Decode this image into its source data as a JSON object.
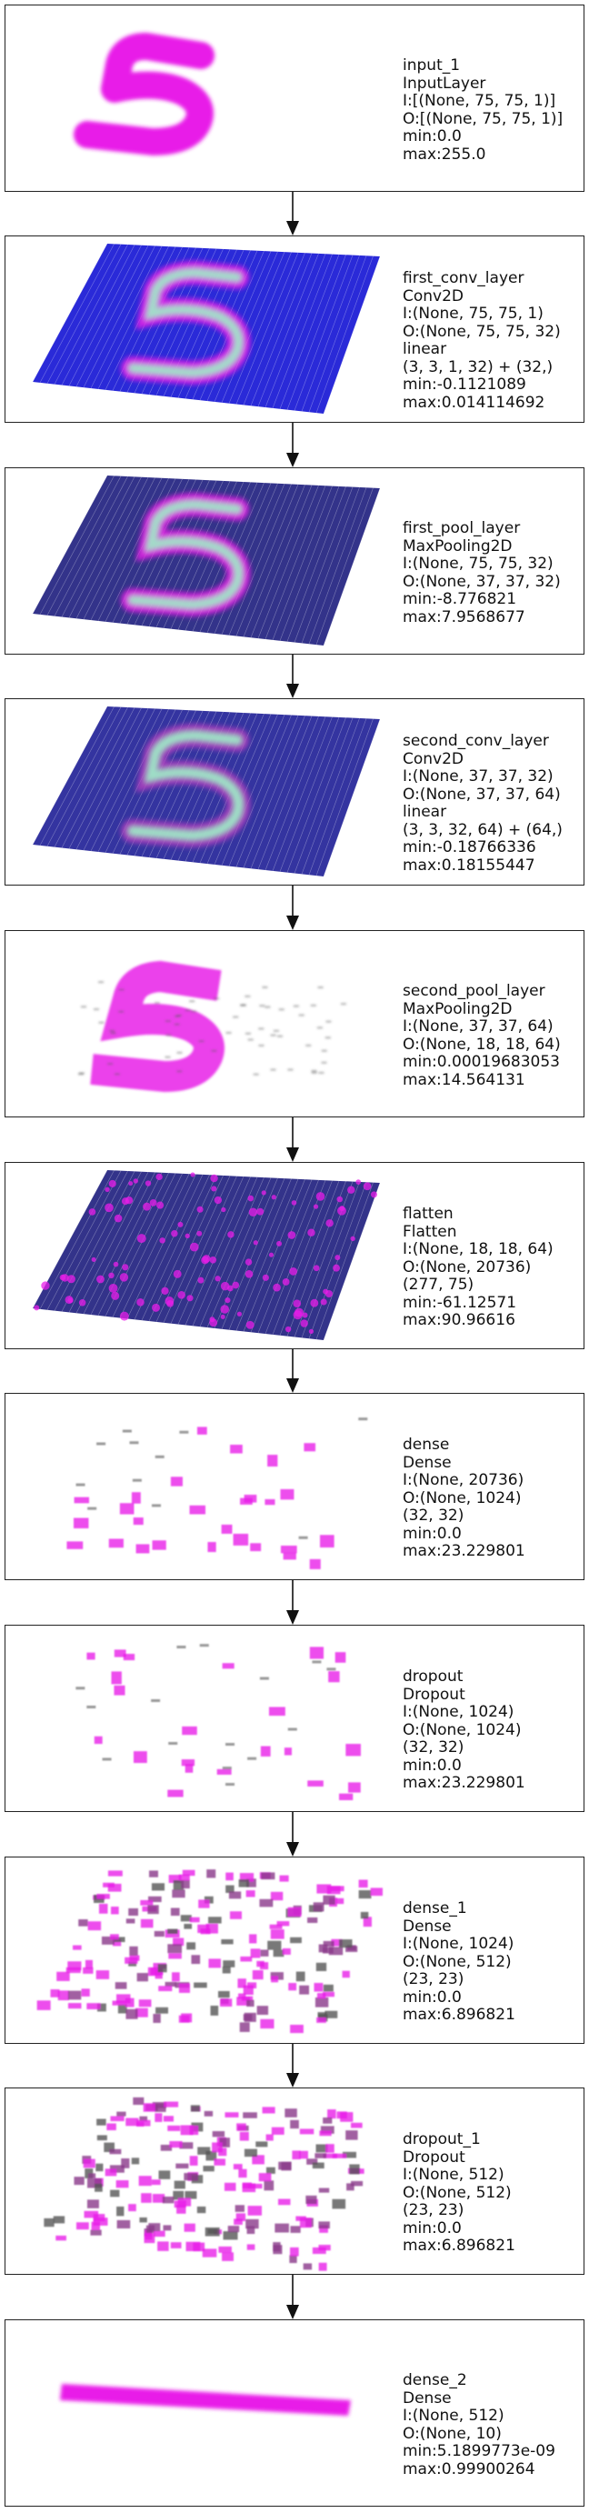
{
  "layers": [
    {
      "lines": [
        "input_1",
        "InputLayer",
        "I:[(None, 75, 75, 1)]",
        "O:[(None, 75, 75, 1)]",
        "min:0.0",
        "max:255.0"
      ],
      "viz": "digit"
    },
    {
      "lines": [
        "first_conv_layer",
        "Conv2D",
        "I:(None, 75, 75, 1)",
        "O:(None, 75, 75, 32)",
        "linear",
        "(3, 3, 1, 32) + (32,)",
        "min:-0.1121089",
        "max:0.014114692"
      ],
      "viz": "conv"
    },
    {
      "lines": [
        "first_pool_layer",
        "MaxPooling2D",
        "I:(None, 75, 75, 32)",
        "O:(None, 37, 37, 32)",
        "min:-8.776821",
        "max:7.9568677"
      ],
      "viz": "pool"
    },
    {
      "lines": [
        "second_conv_layer",
        "Conv2D",
        "I:(None, 37, 37, 32)",
        "O:(None, 37, 37, 64)",
        "linear",
        "(3, 3, 32, 64) + (64,)",
        "min:-0.18766336",
        "max:0.18155447"
      ],
      "viz": "conv2"
    },
    {
      "lines": [
        "second_pool_layer",
        "MaxPooling2D",
        "I:(None, 37, 37, 64)",
        "O:(None, 18, 18, 64)",
        "min:0.00019683053",
        "max:14.564131"
      ],
      "viz": "pool2"
    },
    {
      "lines": [
        "flatten",
        "Flatten",
        "I:(None, 18, 18, 64)",
        "O:(None, 20736)",
        "(277, 75)",
        "min:-61.12571",
        "max:90.96616"
      ],
      "viz": "flatten"
    },
    {
      "lines": [
        "dense",
        "Dense",
        "I:(None, 20736)",
        "O:(None, 1024)",
        "(32, 32)",
        "min:0.0",
        "max:23.229801"
      ],
      "viz": "sparse"
    },
    {
      "lines": [
        "dropout",
        "Dropout",
        "I:(None, 1024)",
        "O:(None, 1024)",
        "(32, 32)",
        "min:0.0",
        "max:23.229801"
      ],
      "viz": "sparse"
    },
    {
      "lines": [
        "dense_1",
        "Dense",
        "I:(None, 1024)",
        "O:(None, 512)",
        "(23, 23)",
        "min:0.0",
        "max:6.896821"
      ],
      "viz": "dense_grid"
    },
    {
      "lines": [
        "dropout_1",
        "Dropout",
        "I:(None, 512)",
        "O:(None, 512)",
        "(23, 23)",
        "min:0.0",
        "max:6.896821"
      ],
      "viz": "dense_grid"
    },
    {
      "lines": [
        "dense_2",
        "Dense",
        "I:(None, 512)",
        "O:(None, 10)",
        "min:5.1899773e-09",
        "max:0.99900264"
      ],
      "viz": "bar"
    }
  ],
  "colors": {
    "magenta": "#e81ee8",
    "blue": "#2a2ad8",
    "navy": "#33338a",
    "mint": "#9ff0c8",
    "grey": "#555555"
  }
}
